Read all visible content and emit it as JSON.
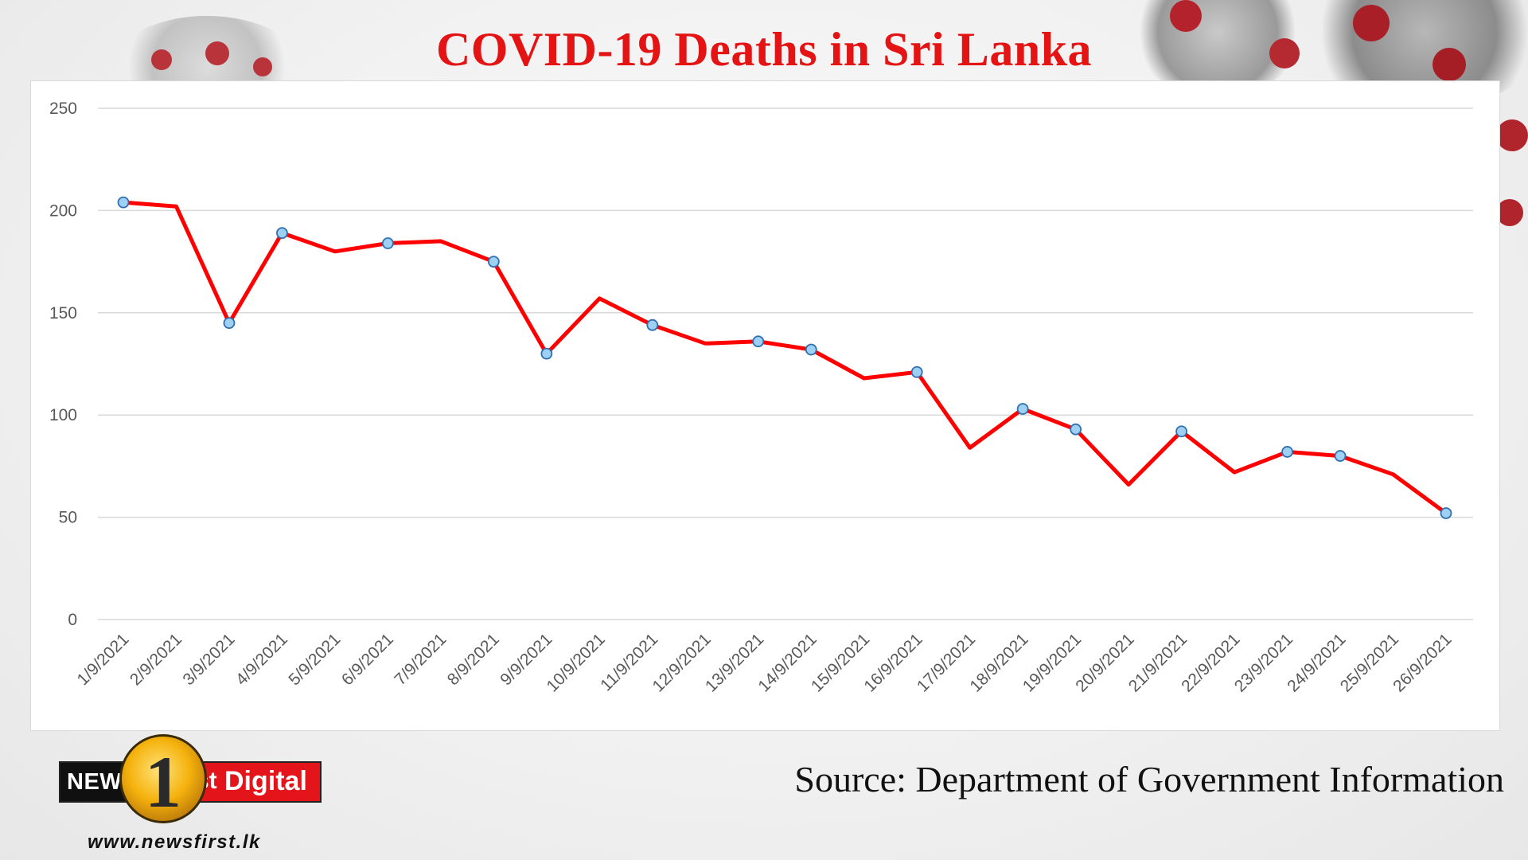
{
  "title": "COVID-19 Deaths in Sri Lanka",
  "source": "Source: Department of Government Information",
  "logo": {
    "left_text": "NEWS",
    "badge_text": "1",
    "st_text": "st",
    "right_text": "Digital",
    "url": "www.newsfirst.lk"
  },
  "colors": {
    "title": "#e41414",
    "line": "#ff0000",
    "marker_fill": "#9ed0f4",
    "marker_stroke": "#2f6fb0",
    "grid": "#d9d9d9",
    "tick_text": "#595959"
  },
  "chart_data": {
    "type": "line",
    "title": "COVID-19 Deaths in Sri Lanka",
    "xlabel": "",
    "ylabel": "",
    "ylim": [
      0,
      250
    ],
    "yticks": [
      0,
      50,
      100,
      150,
      200,
      250
    ],
    "grid": true,
    "legend": "none",
    "categories": [
      "1/9/2021",
      "2/9/2021",
      "3/9/2021",
      "4/9/2021",
      "5/9/2021",
      "6/9/2021",
      "7/9/2021",
      "8/9/2021",
      "9/9/2021",
      "10/9/2021",
      "11/9/2021",
      "12/9/2021",
      "13/9/2021",
      "14/9/2021",
      "15/9/2021",
      "16/9/2021",
      "17/9/2021",
      "18/9/2021",
      "19/9/2021",
      "20/9/2021",
      "21/9/2021",
      "22/9/2021",
      "23/9/2021",
      "24/9/2021",
      "25/9/2021",
      "26/9/2021"
    ],
    "series": [
      {
        "values": [
          204,
          202,
          145,
          189,
          180,
          184,
          185,
          175,
          130,
          157,
          144,
          135,
          136,
          132,
          118,
          121,
          84,
          103,
          93,
          66,
          92,
          72,
          82,
          80,
          71,
          52
        ],
        "markers": [
          true,
          false,
          true,
          true,
          false,
          true,
          false,
          true,
          true,
          false,
          true,
          false,
          true,
          true,
          false,
          true,
          false,
          true,
          true,
          false,
          true,
          false,
          true,
          true,
          false,
          true
        ]
      }
    ]
  }
}
